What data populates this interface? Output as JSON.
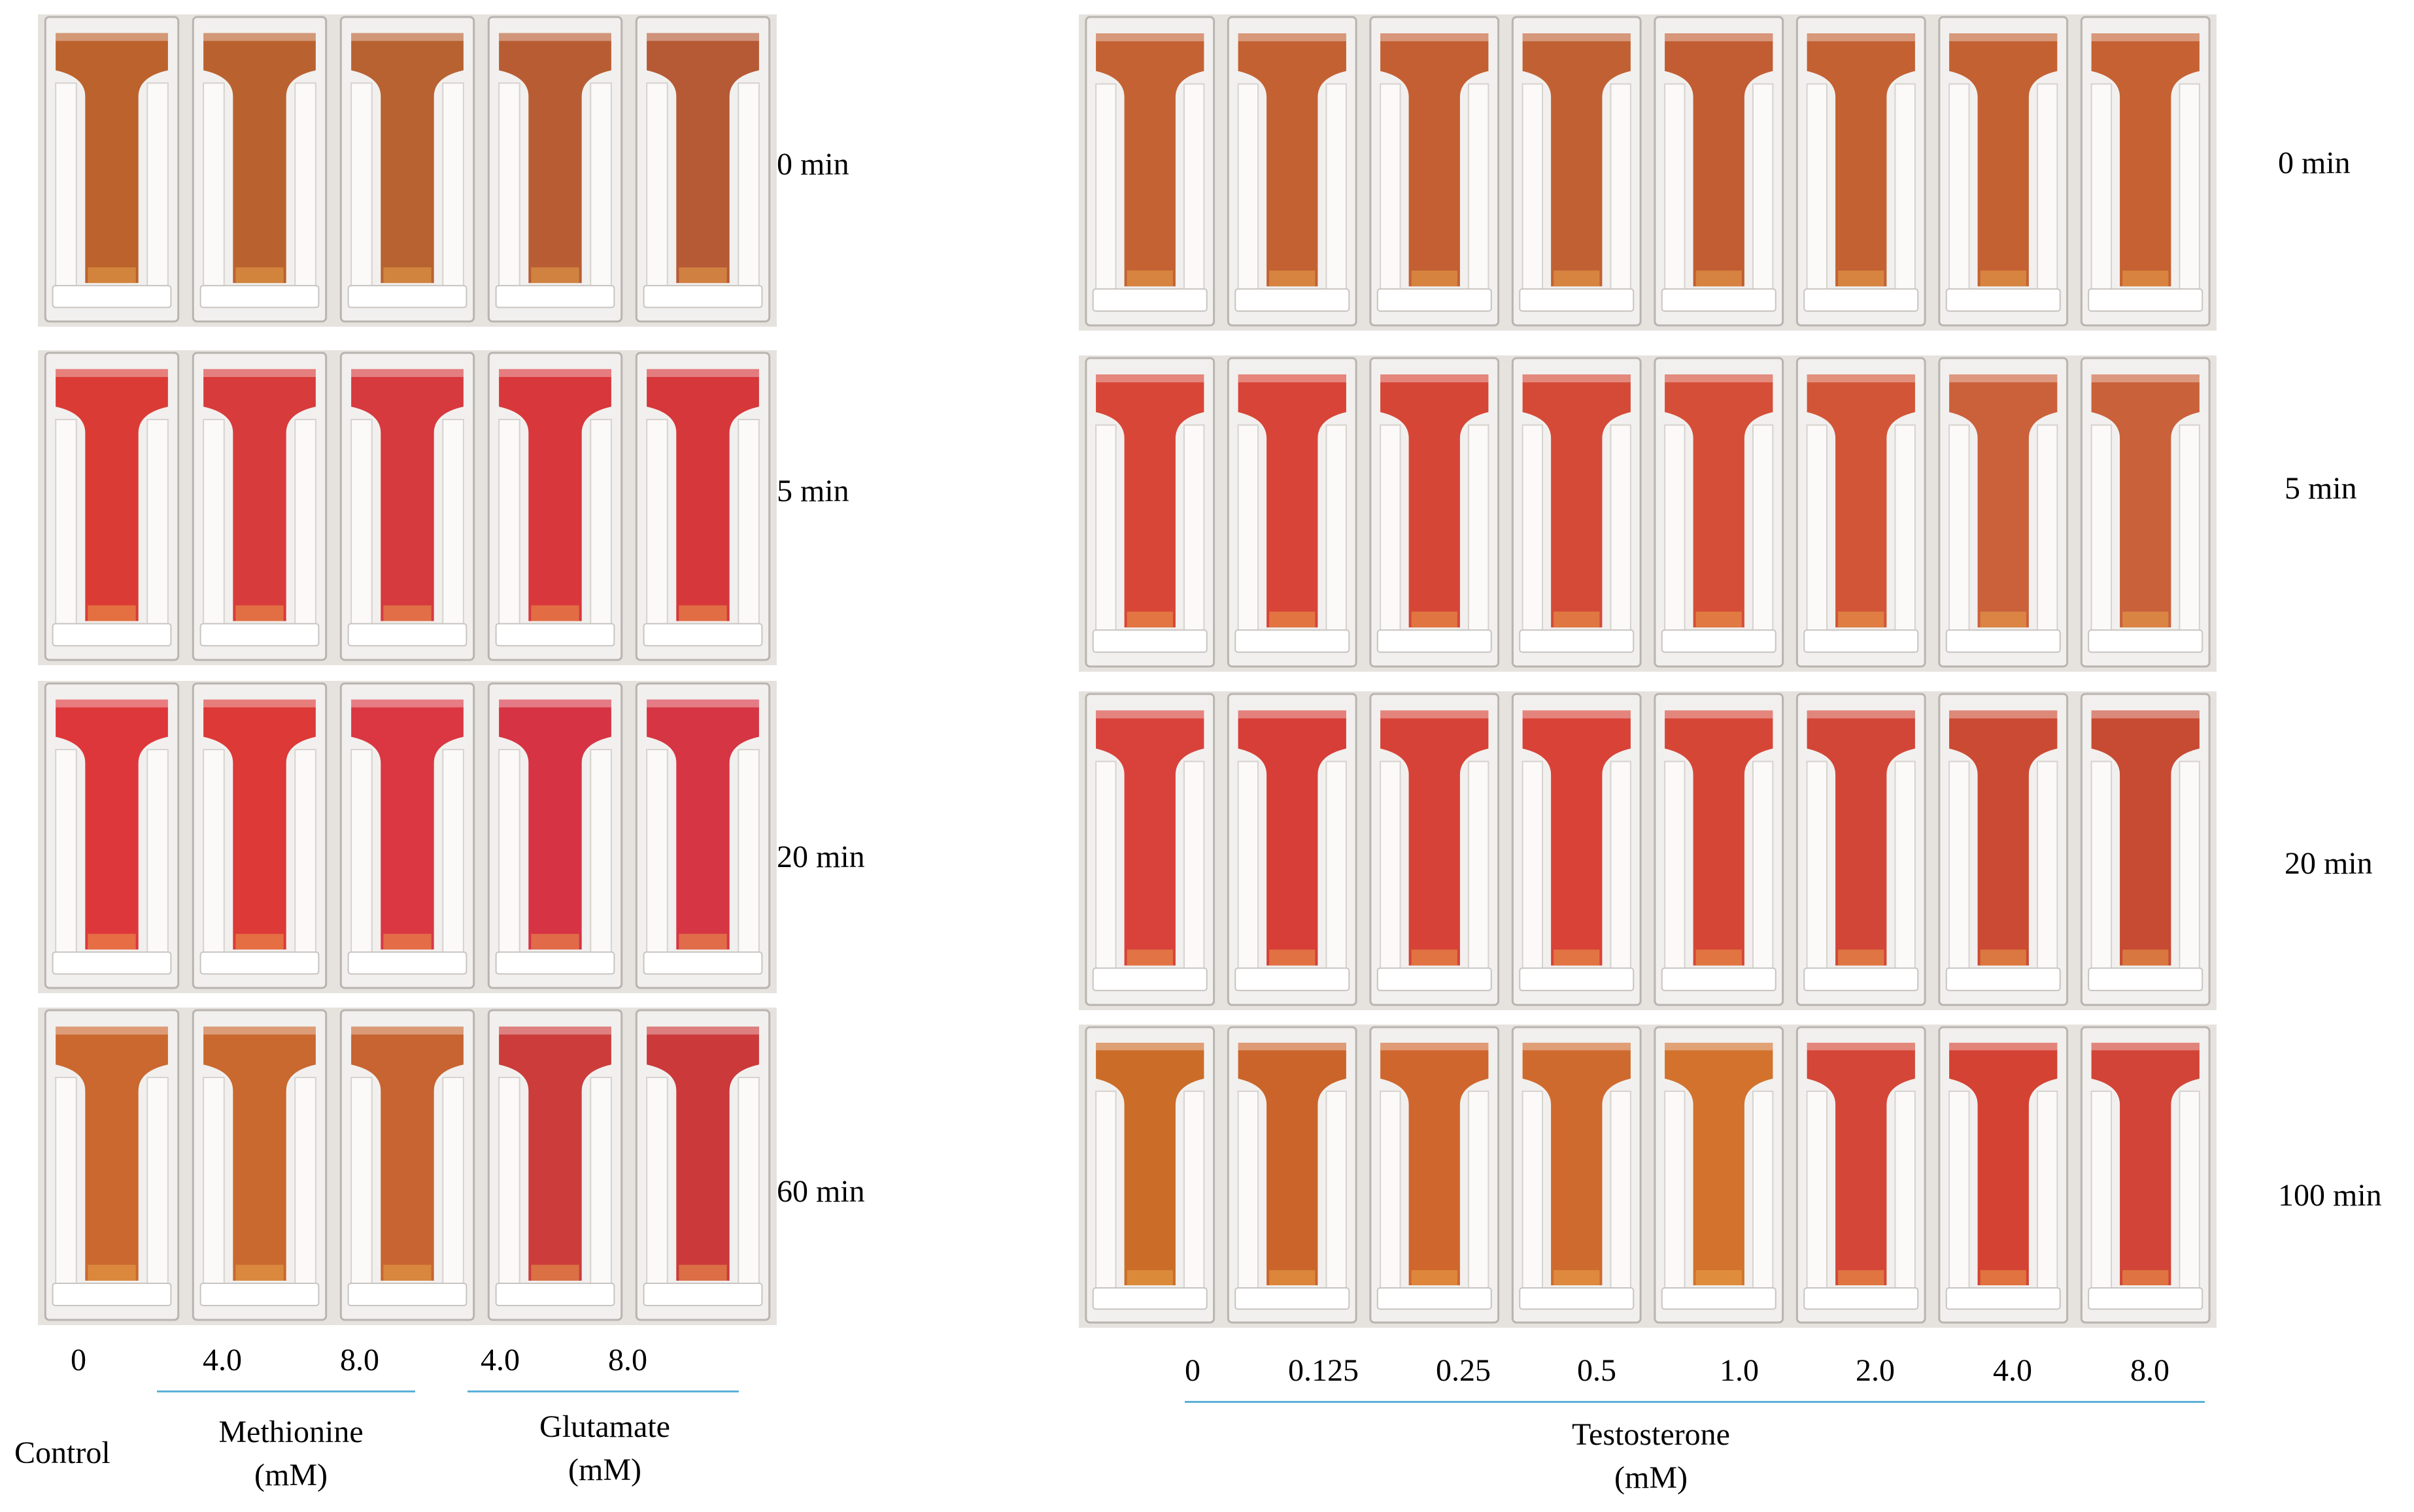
{
  "left_panel": {
    "rows": [
      {
        "time": "0 min",
        "colors": [
          "#b85a22",
          "#b65a24",
          "#b45a26",
          "#b45428",
          "#b2502a"
        ]
      },
      {
        "time": "5 min",
        "colors": [
          "#d8322a",
          "#d63030",
          "#d42e34",
          "#d62c30",
          "#d42c30"
        ]
      },
      {
        "time": "20 min",
        "colors": [
          "#dc2c30",
          "#da2e2c",
          "#d82c38",
          "#d4283a",
          "#d42a3a"
        ]
      },
      {
        "time": "60 min",
        "colors": [
          "#c86024",
          "#c66024",
          "#c45c26",
          "#c83230",
          "#c82e30"
        ]
      }
    ],
    "concentrations": [
      "0",
      "4.0",
      "8.0",
      "4.0",
      "8.0"
    ],
    "group_labels": {
      "control": "Control",
      "methionine": [
        "Methionine",
        "(mM)"
      ],
      "glutamate": [
        "Glutamate",
        "(mM)"
      ]
    }
  },
  "right_panel": {
    "rows": [
      {
        "time": "0 min",
        "colors": [
          "#c15a28",
          "#c05828",
          "#c05628",
          "#be5828",
          "#bf5428",
          "#c05828",
          "#c15828",
          "#c25828"
        ]
      },
      {
        "time": "5 min",
        "colors": [
          "#d63c2c",
          "#d63a2c",
          "#d43c2c",
          "#d2402c",
          "#d3442c",
          "#d04c2c",
          "#c85830",
          "#c65830"
        ]
      },
      {
        "time": "20 min",
        "colors": [
          "#d63830",
          "#d4342c",
          "#d4382c",
          "#d6382c",
          "#d43c2c",
          "#d03c2c",
          "#c84028",
          "#c44028"
        ]
      },
      {
        "time": "100 min",
        "colors": [
          "#c8641c",
          "#c85c20",
          "#cc5e22",
          "#cc6224",
          "#d06a22",
          "#d23c2c",
          "#d23828",
          "#d03a2c"
        ]
      }
    ],
    "concentrations": [
      "0",
      "0.125",
      "0.25",
      "0.5",
      "1.0",
      "2.0",
      "4.0",
      "8.0"
    ],
    "group_label": [
      "Testosterone",
      "(mM)"
    ]
  },
  "colors": {
    "photo_bg": "#e6e2de",
    "cuvette_glass": "#f2f0ee",
    "underline": "#5cb0d8"
  }
}
